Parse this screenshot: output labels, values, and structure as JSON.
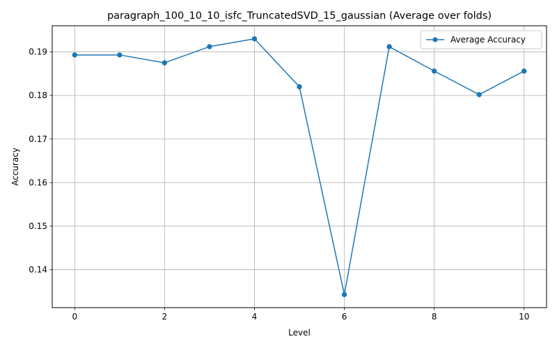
{
  "chart_data": {
    "type": "line",
    "title": "paragraph_100_10_10_isfc_TruncatedSVD_15_gaussian (Average over folds)",
    "xlabel": "Level",
    "ylabel": "Accuracy",
    "x": [
      0,
      1,
      2,
      3,
      4,
      5,
      6,
      7,
      8,
      9,
      10
    ],
    "series": [
      {
        "name": "Average Accuracy",
        "values": [
          0.1893,
          0.1893,
          0.1875,
          0.1912,
          0.193,
          0.182,
          0.1343,
          0.1912,
          0.1856,
          0.1802,
          0.1856
        ],
        "color": "#1f77b4",
        "marker": "circle"
      }
    ],
    "xlim": [
      -0.5,
      10.5
    ],
    "ylim": [
      0.1313,
      0.196
    ],
    "xticks": [
      0,
      2,
      4,
      6,
      8,
      10
    ],
    "yticks": [
      0.14,
      0.15,
      0.16,
      0.17,
      0.18,
      0.19
    ],
    "xtick_labels": [
      "0",
      "2",
      "4",
      "6",
      "8",
      "10"
    ],
    "ytick_labels": [
      "0.14",
      "0.15",
      "0.16",
      "0.17",
      "0.18",
      "0.19"
    ],
    "grid": true,
    "legend": "top-right"
  }
}
